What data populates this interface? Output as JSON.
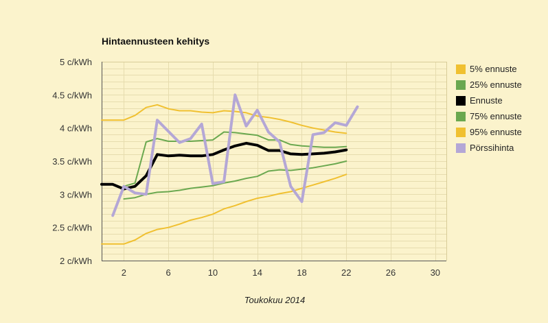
{
  "chart_data": {
    "type": "line",
    "title": "Hintaennusteen kehitys",
    "xlabel": "Toukokuu 2014",
    "ylabel": "",
    "xlim": [
      0,
      31
    ],
    "ylim": [
      2,
      5
    ],
    "x_ticks": [
      2,
      6,
      10,
      14,
      18,
      22,
      26,
      30
    ],
    "y_ticks": [
      2,
      2.5,
      3,
      3.5,
      4,
      4.5,
      5
    ],
    "y_tick_labels": [
      "2 c/kWh",
      "2.5 c/kWh",
      "3 c/kWh",
      "3.5 c/kWh",
      "4 c/kWh",
      "4.5 c/kWh",
      "5 c/kWh"
    ],
    "grid": true,
    "legend_position": "right",
    "background": "#fbf3cc",
    "series": [
      {
        "name": "5% ennuste",
        "color": "#f0c030",
        "width": 2,
        "x": [
          0,
          1,
          2,
          3,
          4,
          5,
          6,
          7,
          8,
          9,
          10,
          11,
          12,
          13,
          14,
          15,
          16,
          17,
          18,
          19,
          20,
          21,
          22
        ],
        "y": [
          2.25,
          2.25,
          2.25,
          2.31,
          2.41,
          2.47,
          2.5,
          2.55,
          2.61,
          2.65,
          2.7,
          2.78,
          2.83,
          2.89,
          2.94,
          2.97,
          3.01,
          3.04,
          3.09,
          3.14,
          3.19,
          3.24,
          3.3
        ]
      },
      {
        "name": "25% ennuste",
        "color": "#6aa84f",
        "width": 2,
        "x": [
          2,
          3,
          4,
          5,
          6,
          7,
          8,
          9,
          10,
          11,
          12,
          13,
          14,
          15,
          16,
          17,
          18,
          19,
          20,
          21,
          22
        ],
        "y": [
          2.93,
          2.95,
          3.0,
          3.03,
          3.04,
          3.06,
          3.09,
          3.11,
          3.13,
          3.17,
          3.2,
          3.24,
          3.27,
          3.35,
          3.37,
          3.36,
          3.38,
          3.4,
          3.43,
          3.46,
          3.5
        ]
      },
      {
        "name": "Ennuste",
        "color": "#000000",
        "width": 4,
        "x": [
          0,
          1,
          2,
          3,
          4,
          5,
          6,
          7,
          8,
          9,
          10,
          11,
          12,
          13,
          14,
          15,
          16,
          17,
          18,
          19,
          20,
          21,
          22
        ],
        "y": [
          3.15,
          3.15,
          3.08,
          3.12,
          3.28,
          3.6,
          3.58,
          3.59,
          3.58,
          3.58,
          3.6,
          3.67,
          3.73,
          3.77,
          3.74,
          3.66,
          3.66,
          3.61,
          3.6,
          3.61,
          3.62,
          3.64,
          3.67
        ]
      },
      {
        "name": "75% ennuste",
        "color": "#6aa84f",
        "width": 2,
        "x": [
          2,
          3,
          4,
          5,
          6,
          7,
          8,
          9,
          10,
          11,
          12,
          13,
          14,
          15,
          16,
          17,
          18,
          19,
          20,
          21,
          22
        ],
        "y": [
          3.12,
          3.17,
          3.79,
          3.84,
          3.8,
          3.8,
          3.8,
          3.81,
          3.82,
          3.94,
          3.93,
          3.91,
          3.89,
          3.82,
          3.82,
          3.75,
          3.73,
          3.72,
          3.71,
          3.71,
          3.72
        ]
      },
      {
        "name": "95% ennuste",
        "color": "#f0c030",
        "width": 2,
        "x": [
          0,
          1,
          2,
          3,
          4,
          5,
          6,
          7,
          8,
          9,
          10,
          11,
          12,
          13,
          14,
          15,
          16,
          17,
          18,
          19,
          20,
          21,
          22
        ],
        "y": [
          4.12,
          4.12,
          4.12,
          4.19,
          4.31,
          4.35,
          4.29,
          4.26,
          4.26,
          4.24,
          4.23,
          4.26,
          4.25,
          4.23,
          4.18,
          4.16,
          4.13,
          4.09,
          4.04,
          4.0,
          3.97,
          3.94,
          3.92
        ]
      },
      {
        "name": "Pörssihinta",
        "color": "#b4a7d6",
        "width": 4,
        "x": [
          1,
          2,
          3,
          4,
          5,
          6,
          7,
          8,
          9,
          10,
          11,
          12,
          13,
          14,
          15,
          16,
          17,
          18,
          19,
          20,
          21,
          22,
          23
        ],
        "y": [
          2.68,
          3.12,
          3.02,
          3.0,
          4.12,
          3.95,
          3.78,
          3.84,
          4.06,
          3.16,
          3.19,
          4.5,
          4.03,
          4.27,
          3.94,
          3.79,
          3.12,
          2.89,
          3.9,
          3.93,
          4.08,
          4.04,
          4.32
        ]
      }
    ]
  }
}
